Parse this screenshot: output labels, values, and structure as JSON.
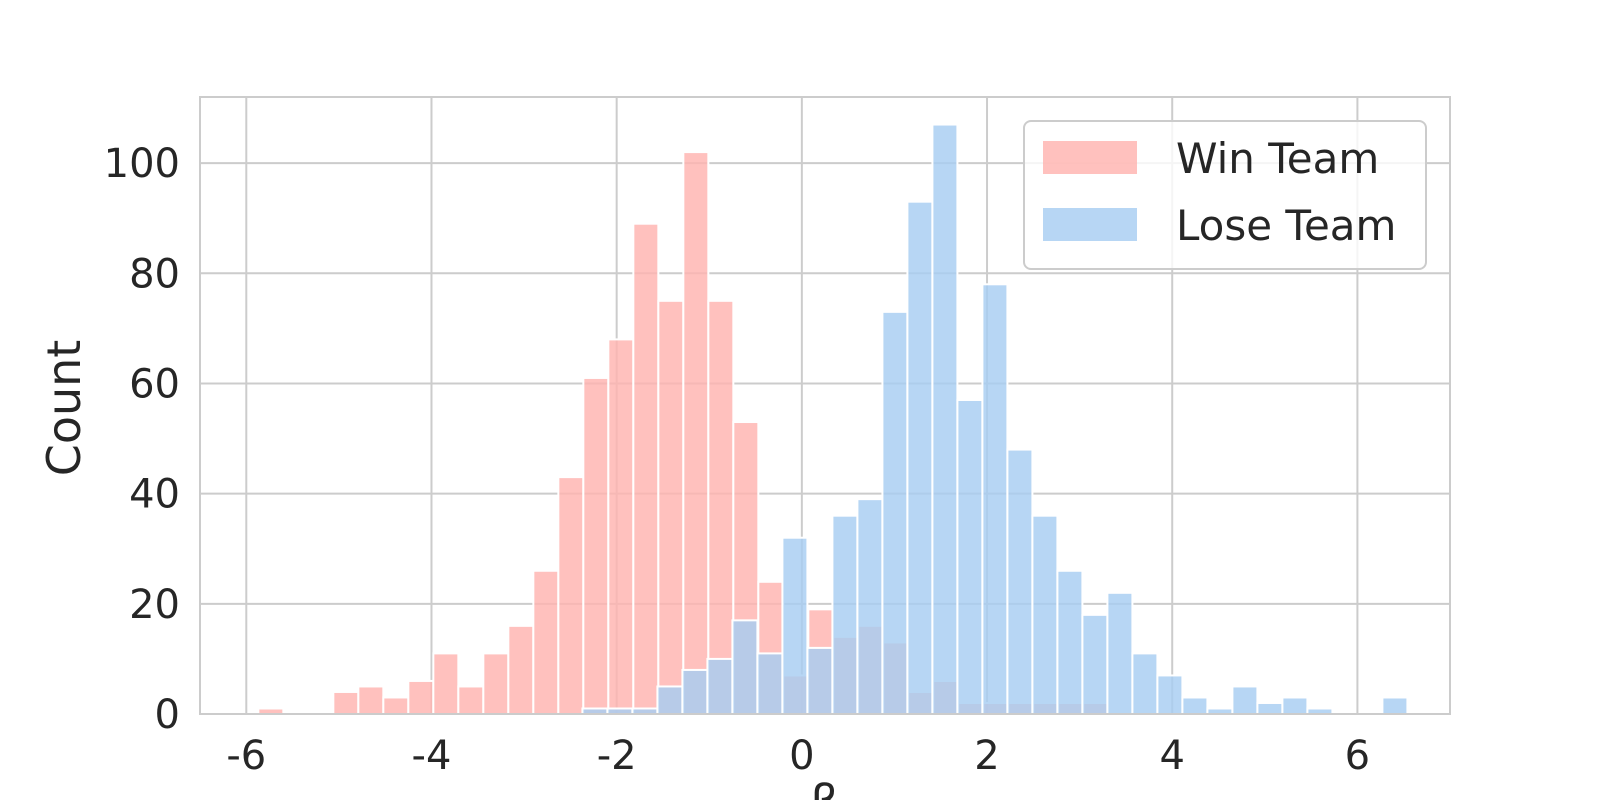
{
  "chart_data": {
    "type": "bar",
    "title": "",
    "xlabel": "β",
    "ylabel": "Count",
    "xlim": [
      -6.5,
      7.0
    ],
    "ylim": [
      0,
      112
    ],
    "xticks": [
      "-6",
      "-4",
      "-2",
      "0",
      "2",
      "4",
      "6"
    ],
    "yticks": [
      "0",
      "20",
      "40",
      "60",
      "80",
      "100"
    ],
    "grid": true,
    "legend_position": "top-right",
    "bin_width": 0.27,
    "series": [
      {
        "name": "Win Team",
        "color": "#ffb3b0",
        "bins": [
          [
            -5.87,
            1
          ],
          [
            -5.6,
            0
          ],
          [
            -5.33,
            0
          ],
          [
            -5.06,
            4
          ],
          [
            -4.79,
            5
          ],
          [
            -4.52,
            3
          ],
          [
            -4.25,
            6
          ],
          [
            -3.98,
            11
          ],
          [
            -3.71,
            5
          ],
          [
            -3.44,
            11
          ],
          [
            -3.17,
            16
          ],
          [
            -2.9,
            26
          ],
          [
            -2.63,
            43
          ],
          [
            -2.36,
            61
          ],
          [
            -2.09,
            68
          ],
          [
            -1.82,
            89
          ],
          [
            -1.55,
            75
          ],
          [
            -1.28,
            102
          ],
          [
            -1.01,
            75
          ],
          [
            -0.74,
            53
          ],
          [
            -0.47,
            24
          ],
          [
            -0.2,
            7
          ],
          [
            0.07,
            19
          ],
          [
            0.34,
            14
          ],
          [
            0.61,
            16
          ],
          [
            0.88,
            13
          ],
          [
            1.15,
            4
          ],
          [
            1.42,
            6
          ],
          [
            1.69,
            2
          ],
          [
            1.96,
            2
          ],
          [
            2.23,
            2
          ],
          [
            2.5,
            2
          ],
          [
            2.77,
            2
          ],
          [
            3.04,
            2
          ]
        ]
      },
      {
        "name": "Lose Team",
        "color": "#a7cdf2",
        "bins": [
          [
            -2.37,
            1
          ],
          [
            -2.1,
            1
          ],
          [
            -1.83,
            1
          ],
          [
            -1.56,
            5
          ],
          [
            -1.29,
            8
          ],
          [
            -1.02,
            10
          ],
          [
            -0.75,
            17
          ],
          [
            -0.48,
            11
          ],
          [
            -0.21,
            32
          ],
          [
            0.06,
            12
          ],
          [
            0.33,
            36
          ],
          [
            0.6,
            39
          ],
          [
            0.87,
            73
          ],
          [
            1.14,
            93
          ],
          [
            1.41,
            107
          ],
          [
            1.68,
            57
          ],
          [
            1.95,
            78
          ],
          [
            2.22,
            48
          ],
          [
            2.49,
            36
          ],
          [
            2.76,
            26
          ],
          [
            3.03,
            18
          ],
          [
            3.3,
            22
          ],
          [
            3.57,
            11
          ],
          [
            3.84,
            7
          ],
          [
            4.11,
            3
          ],
          [
            4.38,
            1
          ],
          [
            4.65,
            5
          ],
          [
            4.92,
            2
          ],
          [
            5.19,
            3
          ],
          [
            5.46,
            1
          ],
          [
            5.73,
            0
          ],
          [
            6.0,
            0
          ],
          [
            6.27,
            3
          ]
        ]
      }
    ]
  }
}
